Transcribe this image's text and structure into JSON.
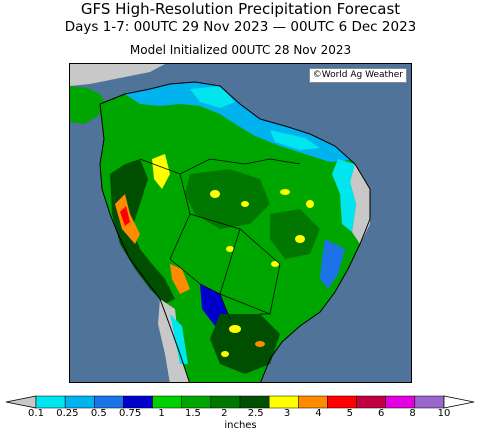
{
  "title": "GFS High-Resolution Precipitation Forecast",
  "period": "Days 1-7: 00UTC 29 Nov 2023 — 00UTC 6 Dec 2023",
  "initialized": "Model Initialized 00UTC 28 Nov 2023",
  "credit": "©World Ag Weather",
  "colors": {
    "ocean": "#4f7399",
    "land_dry": "#c8c8c8",
    "outline": "#000000"
  },
  "colorbar": {
    "units": "inches",
    "ticks": [
      "0.1",
      "0.25",
      "0.5",
      "0.75",
      "1",
      "1.5",
      "2",
      "2.5",
      "3",
      "4",
      "5",
      "6",
      "8",
      "10"
    ],
    "colors": [
      "#00e5ee",
      "#00b2ee",
      "#1c73e8",
      "#0000cd",
      "#00d000",
      "#00a600",
      "#007800",
      "#004f00",
      "#ffff00",
      "#ff8c00",
      "#ff0000",
      "#c00040",
      "#e000e0",
      "#9966cc"
    ],
    "under_color": "#c8c8c8",
    "over_color": "#ffffff"
  }
}
